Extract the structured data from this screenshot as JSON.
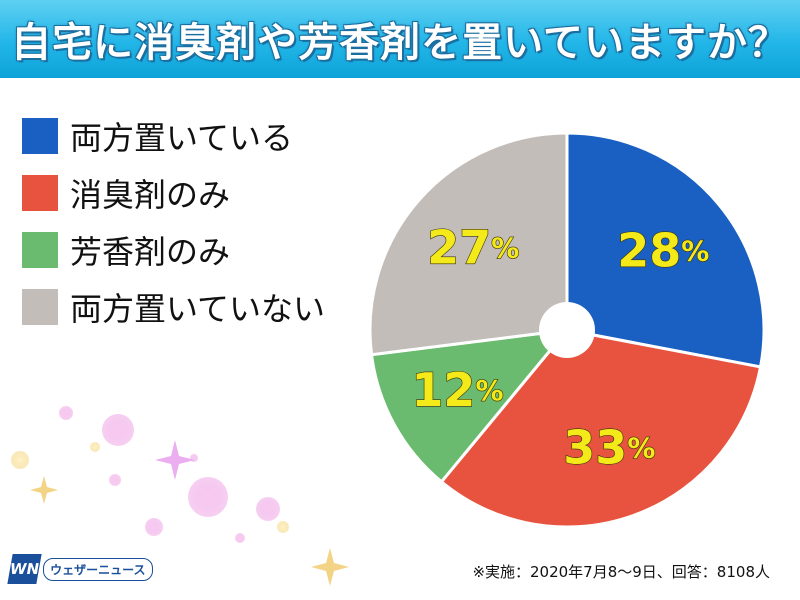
{
  "title": "自宅に消臭剤や芳香剤を置いていますか？",
  "footnote": "※実施：2020年7月8〜9日、回答：8108人",
  "logo": {
    "mark": "WN",
    "text": "ウェザーニュース"
  },
  "colors": {
    "both": "#1960c2",
    "deodorant_only": "#e8533f",
    "fragrance_only": "#6abb6f",
    "neither": "#c2bdb9",
    "percent_label": "#f4ea1a"
  },
  "chart_data": {
    "type": "pie",
    "title": "自宅に消臭剤や芳香剤を置いていますか？",
    "series": [
      {
        "name": "両方置いている",
        "value": 28,
        "label": "28%",
        "color": "#1960c2"
      },
      {
        "name": "消臭剤のみ",
        "value": 33,
        "label": "33%",
        "color": "#e8533f"
      },
      {
        "name": "芳香剤のみ",
        "value": 12,
        "label": "12%",
        "color": "#6abb6f"
      },
      {
        "name": "両方置いていない",
        "value": 27,
        "label": "27%",
        "color": "#c2bdb9"
      }
    ],
    "legend": "left",
    "donut_hole": true
  }
}
